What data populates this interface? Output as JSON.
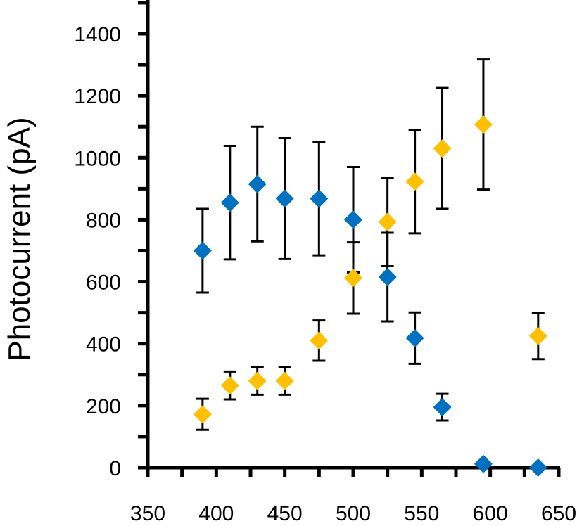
{
  "chart_data": {
    "type": "scatter",
    "title": "",
    "xlabel": "",
    "ylabel": "Photocurrent (pA)",
    "xlim": [
      350,
      650
    ],
    "ylim": [
      0,
      1400
    ],
    "xticks": [
      350,
      400,
      450,
      500,
      550,
      600,
      650
    ],
    "yticks": [
      0,
      200,
      400,
      600,
      800,
      1000,
      1200,
      1400
    ],
    "x_tick_labels": [
      "350",
      "400",
      "450",
      "500",
      "550",
      "600",
      "650"
    ],
    "y_tick_labels": [
      "0",
      "200",
      "400",
      "600",
      "800",
      "1000",
      "1200",
      "1400"
    ],
    "grid": false,
    "legend": "none",
    "marker": "diamond",
    "error_bars": true,
    "series": [
      {
        "color": "#0070C0",
        "points": [
          {
            "x": 390,
            "y": 700,
            "err": 135
          },
          {
            "x": 410,
            "y": 855,
            "err": 183
          },
          {
            "x": 430,
            "y": 915,
            "err": 185
          },
          {
            "x": 450,
            "y": 868,
            "err": 195
          },
          {
            "x": 475,
            "y": 868,
            "err": 183
          },
          {
            "x": 500,
            "y": 800,
            "err": 170
          },
          {
            "x": 525,
            "y": 615,
            "err": 143
          },
          {
            "x": 545,
            "y": 418,
            "err": 83
          },
          {
            "x": 565,
            "y": 195,
            "err": 43
          },
          {
            "x": 595,
            "y": 12,
            "err": 0
          },
          {
            "x": 635,
            "y": 0,
            "err": 0
          }
        ]
      },
      {
        "color": "#FFC000",
        "points": [
          {
            "x": 390,
            "y": 172,
            "err": 50
          },
          {
            "x": 410,
            "y": 265,
            "err": 45
          },
          {
            "x": 430,
            "y": 280,
            "err": 45
          },
          {
            "x": 450,
            "y": 280,
            "err": 45
          },
          {
            "x": 475,
            "y": 410,
            "err": 65
          },
          {
            "x": 500,
            "y": 612,
            "err": 115
          },
          {
            "x": 525,
            "y": 793,
            "err": 143
          },
          {
            "x": 545,
            "y": 923,
            "err": 167
          },
          {
            "x": 565,
            "y": 1030,
            "err": 195
          },
          {
            "x": 595,
            "y": 1107,
            "err": 210
          },
          {
            "x": 635,
            "y": 425,
            "err": 75
          }
        ]
      }
    ]
  }
}
